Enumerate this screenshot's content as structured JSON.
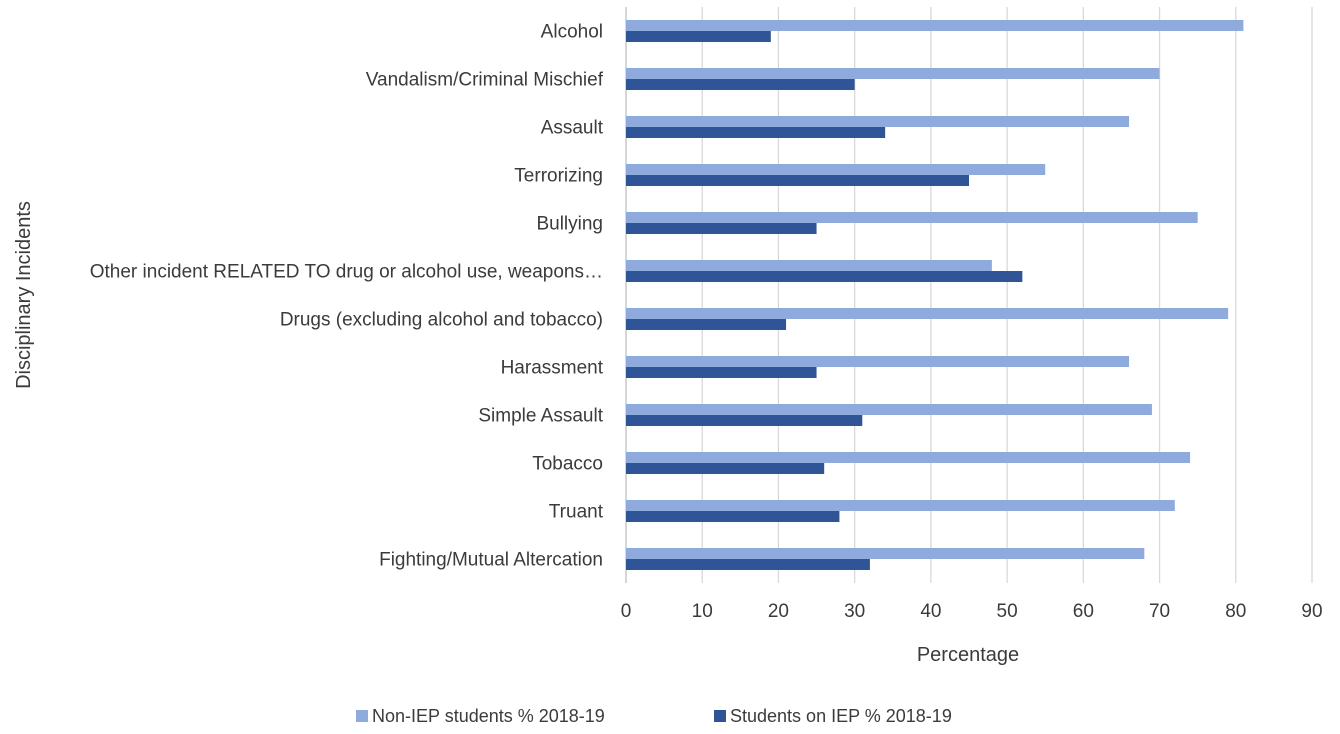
{
  "chart_data": {
    "type": "bar",
    "orientation": "horizontal",
    "categories": [
      "Alcohol",
      "Vandalism/Criminal Mischief",
      "Assault",
      "Terrorizing",
      "Bullying",
      "Other incident RELATED TO drug or alcohol use, weapons…",
      "Drugs (excluding alcohol and tobacco)",
      "Harassment",
      "Simple Assault",
      "Tobacco",
      "Truant",
      "Fighting/Mutual Altercation"
    ],
    "series": [
      {
        "name": "Non-IEP students % 2018-19",
        "color": "#8faadc",
        "values": [
          81,
          70,
          66,
          55,
          75,
          48,
          79,
          66,
          69,
          74,
          72,
          68
        ]
      },
      {
        "name": "Students on IEP % 2018-19",
        "color": "#2f5597",
        "values": [
          19,
          30,
          34,
          45,
          25,
          52,
          21,
          25,
          31,
          26,
          28,
          32
        ]
      }
    ],
    "xlabel": "Percentage",
    "ylabel": "Disciplinary Incidents",
    "xlim": [
      0,
      90
    ],
    "xticks": [
      "0",
      "10",
      "20",
      "30",
      "40",
      "50",
      "60",
      "70",
      "80",
      "90"
    ],
    "grid": true,
    "legend": "bottom"
  }
}
